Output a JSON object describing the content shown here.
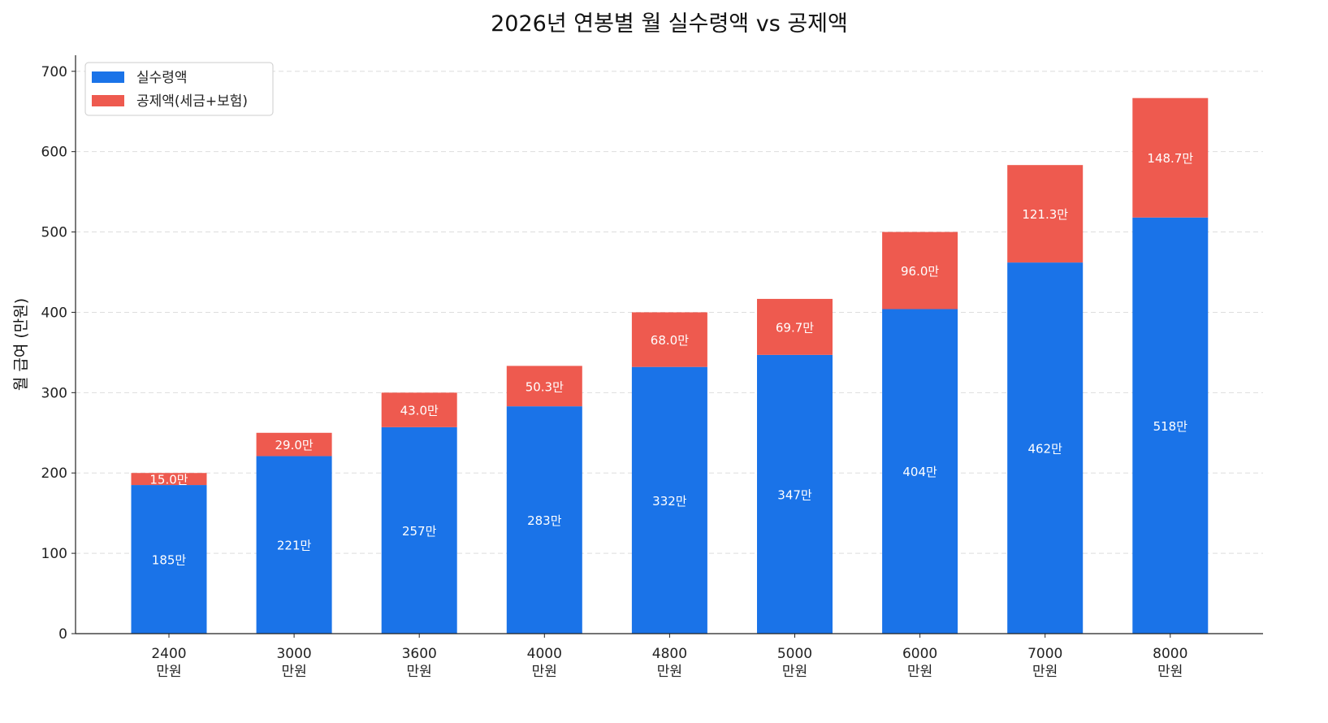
{
  "chart_data": {
    "type": "bar",
    "stacked": true,
    "title": "2026년 연봉별 월 실수령액 vs 공제액",
    "xlabel": "",
    "ylabel": "월 급여 (만원)",
    "categories": [
      "2400\n만원",
      "3000\n만원",
      "3600\n만원",
      "4000\n만원",
      "4800\n만원",
      "5000\n만원",
      "6000\n만원",
      "7000\n만원",
      "8000\n만원"
    ],
    "series": [
      {
        "name": "실수령액",
        "color": "#1a73e8",
        "values": [
          185,
          221,
          257,
          283,
          332,
          347,
          404,
          462,
          518
        ],
        "labels": [
          "185만",
          "221만",
          "257만",
          "283만",
          "332만",
          "347만",
          "404만",
          "462만",
          "518만"
        ]
      },
      {
        "name": "공제액(세금+보험)",
        "color": "#ee5a4f",
        "values": [
          15.0,
          29.0,
          43.0,
          50.3,
          68.0,
          69.7,
          96.0,
          121.3,
          148.7
        ],
        "labels": [
          "15.0만",
          "29.0만",
          "43.0만",
          "50.3만",
          "68.0만",
          "69.7만",
          "96.0만",
          "121.3만",
          "148.7만"
        ]
      }
    ],
    "ylim": [
      0,
      720
    ],
    "yticks": [
      0,
      100,
      200,
      300,
      400,
      500,
      600,
      700
    ],
    "grid": "y-dashed",
    "legend": "top-left"
  }
}
